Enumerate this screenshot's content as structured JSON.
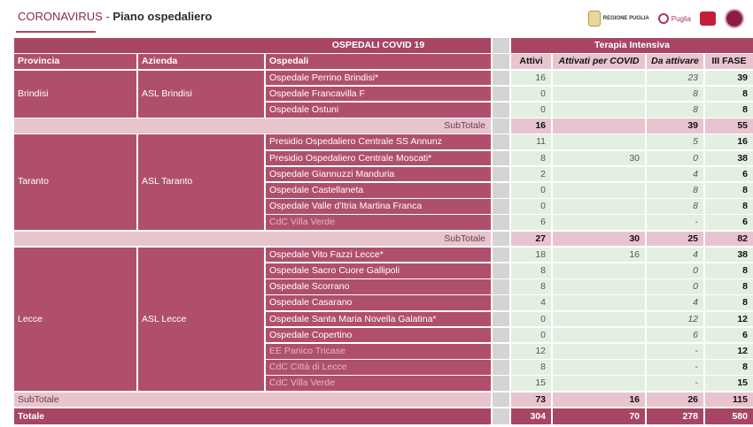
{
  "header": {
    "title_prefix": "CORONAVIRUS",
    "title_sep": " - ",
    "title_main": "Piano ospedaliero",
    "logos": [
      {
        "name": "regione-puglia-logo",
        "text": "REGIONE PUGLIA"
      },
      {
        "name": "puglia-salute-logo",
        "text": "Puglia"
      },
      {
        "name": "ares-logo",
        "text": ""
      },
      {
        "name": "seal-logo",
        "text": ""
      }
    ]
  },
  "table": {
    "group_headers": {
      "ospedali": "OSPEDALI COVID 19",
      "terapia": "Terapia Intensiva"
    },
    "columns": {
      "provincia": "Provincia",
      "azienda": "Azienda",
      "ospedali": "Ospedali",
      "attivi": "Attivi",
      "attivati": "Attivati per COVID",
      "da_attivare": "Da attivare",
      "fase": "III FASE"
    },
    "groups": [
      {
        "provincia": "Brindisi",
        "azienda": "ASL Brindisi",
        "rows": [
          {
            "name": "Ospedale Perrino Brindisi*",
            "attivi": "16",
            "attivati": "",
            "da_attivare": "23",
            "fase": "39"
          },
          {
            "name": "Ospedale Francavilla F",
            "attivi": "0",
            "attivati": "",
            "da_attivare": "8",
            "fase": "8"
          },
          {
            "name": "Ospedale  Ostuni",
            "attivi": "0",
            "attivati": "",
            "da_attivare": "8",
            "fase": "8"
          }
        ],
        "subtotal": {
          "label": "SubTotale",
          "attivi": "16",
          "attivati": "",
          "da_attivare": "39",
          "fase": "55"
        }
      },
      {
        "provincia": "Taranto",
        "azienda": "ASL Taranto",
        "rows": [
          {
            "name": "Presidio Ospedaliero Centrale SS Annunz",
            "attivi": "11",
            "attivati": "",
            "da_attivare": "5",
            "fase": "16"
          },
          {
            "name": "Presidio Ospedaliero Centrale Moscati*",
            "attivi": "8",
            "attivati": "30",
            "da_attivare": "0",
            "fase": "38"
          },
          {
            "name": "Ospedale Giannuzzi Manduria",
            "attivi": "2",
            "attivati": "",
            "da_attivare": "4",
            "fase": "6"
          },
          {
            "name": "Ospedale Castellaneta",
            "attivi": "0",
            "attivati": "",
            "da_attivare": "8",
            "fase": "8"
          },
          {
            "name": "Ospedale Valle d'Itria Martina Franca",
            "attivi": "0",
            "attivati": "",
            "da_attivare": "8",
            "fase": "8"
          },
          {
            "name": "CdC Villa Verde",
            "attivi": "6",
            "attivati": "",
            "da_attivare": "-",
            "fase": "6"
          }
        ],
        "subtotal": {
          "label": "SubTotale",
          "attivi": "27",
          "attivati": "30",
          "da_attivare": "25",
          "fase": "82"
        }
      },
      {
        "provincia": "Lecce",
        "azienda": "ASL Lecce",
        "rows": [
          {
            "name": "Ospedale Vito Fazzi Lecce*",
            "attivi": "18",
            "attivati": "16",
            "da_attivare": "4",
            "fase": "38"
          },
          {
            "name": "Ospedale Sacro Cuore Gallipoli",
            "attivi": "8",
            "attivati": "",
            "da_attivare": "0",
            "fase": "8"
          },
          {
            "name": "Ospedale Scorrano",
            "attivi": "8",
            "attivati": "",
            "da_attivare": "0",
            "fase": "8"
          },
          {
            "name": "Ospedale Casarano",
            "attivi": "4",
            "attivati": "",
            "da_attivare": "4",
            "fase": "8"
          },
          {
            "name": "Ospedale Santa Maria Novella Galatina*",
            "attivi": "0",
            "attivati": "",
            "da_attivare": "12",
            "fase": "12"
          },
          {
            "name": "Ospedale Copertino",
            "attivi": "0",
            "attivati": "",
            "da_attivare": "6",
            "fase": "6"
          },
          {
            "name": "EE Panico Tricase",
            "attivi": "12",
            "attivati": "",
            "da_attivare": "-",
            "fase": "12"
          },
          {
            "name": "CdC Città di Lecce",
            "attivi": "8",
            "attivati": "",
            "da_attivare": "-",
            "fase": "8"
          },
          {
            "name": "CdC Villa Verde",
            "attivi": "15",
            "attivati": "",
            "da_attivare": "-",
            "fase": "15"
          }
        ],
        "subtotal": {
          "label": "SubTotale",
          "attivi": "73",
          "attivati": "16",
          "da_attivare": "26",
          "fase": "115"
        }
      }
    ],
    "totale": {
      "label": "Totale",
      "attivi": "304",
      "attivati": "70",
      "da_attivare": "278",
      "fase": "580"
    }
  }
}
